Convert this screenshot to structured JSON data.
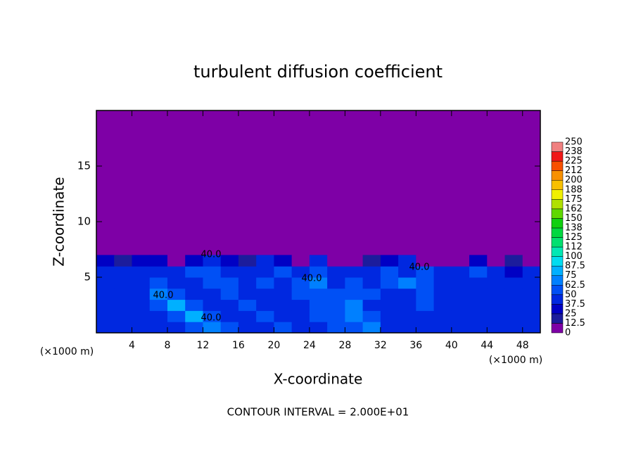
{
  "chart_data": {
    "type": "heatmap",
    "title": "turbulent diffusion coefficient",
    "x_label": "X-coordinate",
    "y_label": "Z-coordinate",
    "x_unit": "(×1000 m)",
    "footer": "CONTOUR INTERVAL = 2.000E+01",
    "xlim": [
      0,
      50
    ],
    "ylim": [
      0,
      20
    ],
    "xticks": [
      4,
      8,
      12,
      16,
      20,
      24,
      28,
      32,
      36,
      40,
      44,
      48
    ],
    "yticks": [
      5,
      10,
      15
    ],
    "x": [
      1,
      3,
      5,
      7,
      9,
      11,
      13,
      15,
      17,
      19,
      21,
      23,
      25,
      27,
      29,
      31,
      33,
      35,
      37,
      39,
      41,
      43,
      45,
      47,
      49
    ],
    "z": [
      0.5,
      1.5,
      2.5,
      3.5,
      4.5,
      5.5,
      6.5
    ],
    "values": [
      [
        45,
        45,
        40,
        45,
        45,
        55,
        70,
        50,
        40,
        45,
        50,
        45,
        40,
        50,
        55,
        70,
        45,
        40,
        45,
        40,
        45,
        40,
        45,
        40,
        45
      ],
      [
        45,
        40,
        45,
        40,
        50,
        75,
        60,
        45,
        40,
        50,
        45,
        45,
        50,
        60,
        70,
        60,
        40,
        45,
        45,
        45,
        40,
        45,
        45,
        40,
        40
      ],
      [
        40,
        45,
        40,
        50,
        75,
        60,
        45,
        40,
        50,
        45,
        40,
        45,
        55,
        55,
        65,
        45,
        40,
        45,
        50,
        40,
        45,
        40,
        40,
        40,
        40
      ],
      [
        40,
        40,
        45,
        65,
        55,
        45,
        40,
        50,
        45,
        40,
        45,
        55,
        60,
        50,
        60,
        50,
        45,
        40,
        55,
        45,
        40,
        45,
        40,
        40,
        45
      ],
      [
        45,
        40,
        45,
        50,
        45,
        40,
        50,
        55,
        45,
        50,
        40,
        60,
        70,
        45,
        55,
        45,
        60,
        70,
        50,
        45,
        40,
        45,
        45,
        40,
        45
      ],
      [
        40,
        45,
        40,
        40,
        45,
        50,
        60,
        45,
        45,
        40,
        50,
        45,
        60,
        45,
        40,
        45,
        50,
        45,
        60,
        45,
        40,
        50,
        45,
        30,
        40
      ],
      [
        30,
        20,
        30,
        35,
        0,
        30,
        40,
        35,
        20,
        40,
        35,
        0,
        40,
        0,
        5,
        20,
        30,
        40,
        0,
        0,
        10,
        30,
        5,
        20,
        0
      ]
    ],
    "contour_labels": [
      "40.0",
      "40.0",
      "40.0",
      "40.0",
      "40.0"
    ],
    "colorbar_levels": [
      0,
      12.5,
      25,
      37.5,
      50,
      62.5,
      75,
      87.5,
      100,
      112,
      125,
      138,
      150,
      162,
      175,
      188,
      200,
      212,
      225,
      238,
      250
    ],
    "colorbar_colors": [
      "#7e00a6",
      "#1c1c9c",
      "#0000c4",
      "#0028e0",
      "#0050f5",
      "#0080ff",
      "#00b0ff",
      "#00dcf0",
      "#00e8b4",
      "#00e070",
      "#00d840",
      "#10d010",
      "#60d800",
      "#b0e000",
      "#f0f000",
      "#f8c000",
      "#f89000",
      "#f85000",
      "#f01818",
      "#f08080"
    ]
  }
}
